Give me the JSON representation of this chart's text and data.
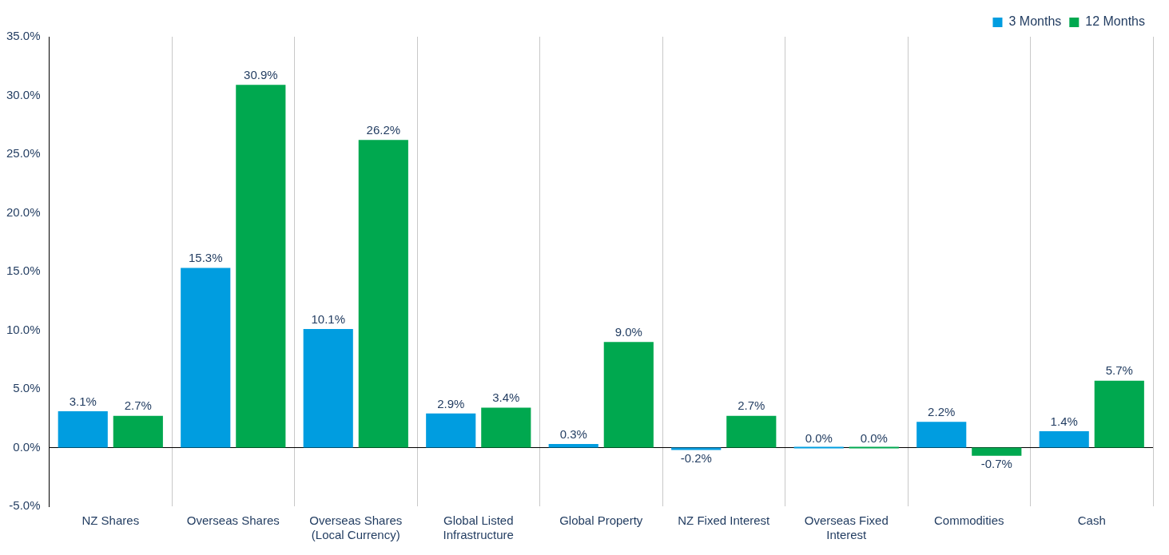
{
  "chart_data": {
    "type": "bar",
    "categories": [
      "NZ Shares",
      "Overseas Shares",
      "Overseas Shares (Local Currency)",
      "Global Listed Infrastructure",
      "Global Property",
      "NZ Fixed Interest",
      "Overseas Fixed Interest",
      "Commodities",
      "Cash"
    ],
    "series": [
      {
        "name": "3 Months",
        "color": "#009de0",
        "values": [
          3.1,
          15.3,
          10.1,
          2.9,
          0.3,
          -0.2,
          0.0,
          2.2,
          1.4
        ],
        "value_labels": [
          "3.1%",
          "15.3%",
          "10.1%",
          "2.9%",
          "0.3%",
          "-0.2%",
          "0.0%",
          "2.2%",
          "1.4%"
        ]
      },
      {
        "name": "12 Months",
        "color": "#00a84f",
        "values": [
          2.7,
          30.9,
          26.2,
          3.4,
          9.0,
          2.7,
          0.0,
          -0.7,
          5.7
        ],
        "value_labels": [
          "2.7%",
          "30.9%",
          "26.2%",
          "3.4%",
          "9.0%",
          "2.7%",
          "0.0%",
          "-0.7%",
          "5.7%"
        ]
      }
    ],
    "ylim": [
      -5,
      35
    ],
    "yticks": [
      {
        "value": -5,
        "label": "-5.0%"
      },
      {
        "value": 0,
        "label": "0.0%"
      },
      {
        "value": 5,
        "label": "5.0%"
      },
      {
        "value": 10,
        "label": "10.0%"
      },
      {
        "value": 15,
        "label": "15.0%"
      },
      {
        "value": 20,
        "label": "20.0%"
      },
      {
        "value": 25,
        "label": "25.0%"
      },
      {
        "value": 30,
        "label": "30.0%"
      },
      {
        "value": 35,
        "label": "35.0%"
      }
    ],
    "grid": "x",
    "legend": "top right"
  }
}
